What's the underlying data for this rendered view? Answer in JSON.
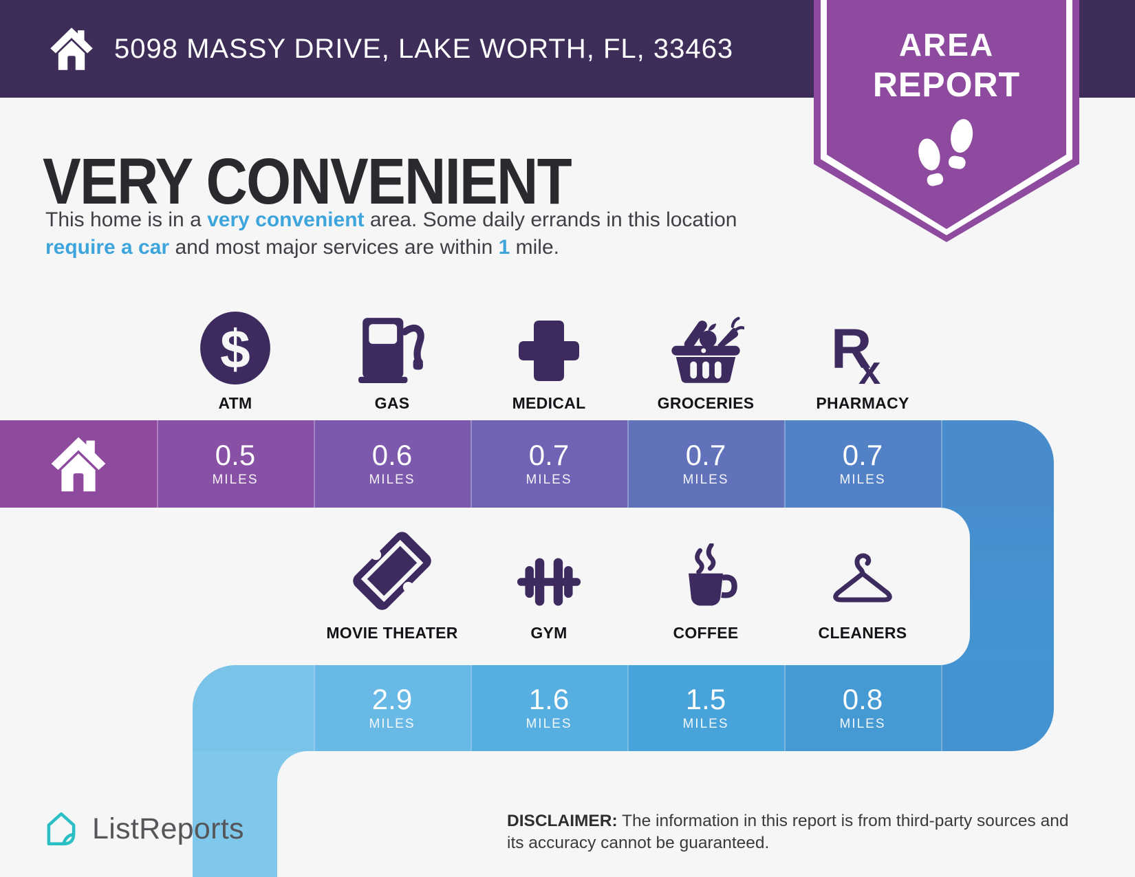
{
  "header": {
    "address": "5098 MASSY DRIVE, LAKE WORTH, FL, 33463",
    "home_icon": "home-icon"
  },
  "badge": {
    "line1": "AREA",
    "line2": "REPORT",
    "icon": "footprints-icon"
  },
  "intro": {
    "title": "VERY CONVENIENT",
    "segments": [
      {
        "text": "This home is in a "
      },
      {
        "text": "very convenient",
        "bold_blue": true
      },
      {
        "text": " area. Some daily errands in this location "
      },
      {
        "text": "require a car",
        "bold_blue": true
      },
      {
        "text": " and most major services are within "
      },
      {
        "text": "1",
        "bold_blue": true
      },
      {
        "text": " mile."
      }
    ]
  },
  "poi_rows": [
    {
      "items": [
        {
          "label": "ATM",
          "icon": "atm-icon"
        },
        {
          "label": "GAS",
          "icon": "gas-icon"
        },
        {
          "label": "MEDICAL",
          "icon": "medical-icon"
        },
        {
          "label": "GROCERIES",
          "icon": "groceries-icon"
        },
        {
          "label": "PHARMACY",
          "icon": "pharmacy-icon"
        }
      ]
    },
    {
      "items": [
        {
          "label": "MOVIE THEATER",
          "icon": "movie-theater-icon"
        },
        {
          "label": "GYM",
          "icon": "gym-icon"
        },
        {
          "label": "COFFEE",
          "icon": "coffee-icon"
        },
        {
          "label": "CLEANERS",
          "icon": "cleaners-icon"
        }
      ]
    }
  ],
  "distance_bars": {
    "unit": "MILES",
    "bar1": {
      "has_home_segment": true,
      "cells": [
        {
          "poi": "ATM",
          "value": "0.5"
        },
        {
          "poi": "GAS",
          "value": "0.6"
        },
        {
          "poi": "MEDICAL",
          "value": "0.7"
        },
        {
          "poi": "GROCERIES",
          "value": "0.7"
        },
        {
          "poi": "PHARMACY",
          "value": "0.7"
        }
      ]
    },
    "bar2": {
      "cells": [
        {
          "poi": "MOVIE THEATER",
          "value": "2.9"
        },
        {
          "poi": "GYM",
          "value": "1.6"
        },
        {
          "poi": "COFFEE",
          "value": "1.5"
        },
        {
          "poi": "CLEANERS",
          "value": "0.8"
        }
      ]
    }
  },
  "colors": {
    "header_purple": "#3E2D59",
    "badge_purple": "#8D4A9E",
    "icon_purple": "#3D2B5F",
    "accent_blue": "#3DA5DC",
    "logo_teal": "#2BBEC4",
    "bar1_segments": [
      "#8E4A9D",
      "#8951A5",
      "#7C59AC",
      "#6F63B3",
      "#6172BB",
      "#5282C5",
      "#488CCB"
    ],
    "bar2_segments": [
      "#79C3E9",
      "#68B9E5",
      "#57AEE0",
      "#48A3DA",
      "#469AD4",
      "#4492D0"
    ],
    "strip_left": "#7FC7EB",
    "strip_right_top": "#478ECD",
    "strip_right_bottom": "#4494D2"
  },
  "footer": {
    "brand": "ListReports",
    "disclaimer_label": "DISCLAIMER:",
    "disclaimer_text": " The information in this report is from third-party sources and its accuracy cannot be guaranteed."
  }
}
